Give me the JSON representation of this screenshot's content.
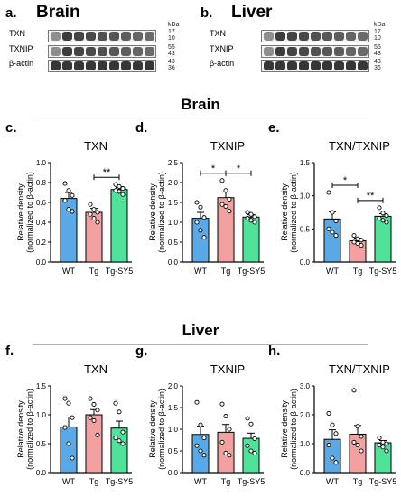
{
  "blots": {
    "brain": {
      "panel": "a.",
      "tissue": "Brain",
      "rows": [
        {
          "protein": "TXN",
          "kda": [
            "17",
            "10"
          ]
        },
        {
          "protein": "TXNIP",
          "kda": [
            "55",
            "43"
          ]
        },
        {
          "protein": "β-actin",
          "kda": [
            "43",
            "36"
          ]
        }
      ],
      "unit": "kDa"
    },
    "liver": {
      "panel": "b.",
      "tissue": "Liver",
      "rows": [
        {
          "protein": "TXN",
          "kda": [
            "17",
            "10"
          ]
        },
        {
          "protein": "TXNIP",
          "kda": [
            "55",
            "43"
          ]
        },
        {
          "protein": "β-actin",
          "kda": [
            "43",
            "36"
          ]
        }
      ],
      "unit": "kDa"
    }
  },
  "sections": {
    "brain": "Brain",
    "liver": "Liver"
  },
  "colors": {
    "WT": "#5aa9e6",
    "Tg": "#f2a0a0",
    "Tg-SY5": "#4fe39a"
  },
  "chart_data": [
    {
      "panel": "c.",
      "type": "bar",
      "title": "TXN",
      "categories": [
        "WT",
        "Tg",
        "Tg-SY5"
      ],
      "values": [
        0.64,
        0.5,
        0.73
      ],
      "errors": [
        0.06,
        0.04,
        0.02
      ],
      "points": [
        [
          0.79,
          0.72,
          0.67,
          0.62,
          0.53,
          0.51
        ],
        [
          0.58,
          0.53,
          0.5,
          0.48,
          0.44,
          0.4
        ],
        [
          0.78,
          0.76,
          0.74,
          0.72,
          0.71,
          0.68
        ]
      ],
      "ylim": [
        0,
        1.0
      ],
      "yticks": [
        "0.0",
        "0.2",
        "0.4",
        "0.6",
        "0.8",
        "1.0"
      ],
      "ylabel": [
        "Relative density",
        "(normalized to β-actin)"
      ],
      "sig": [
        {
          "from": 1,
          "to": 2,
          "label": "**"
        }
      ]
    },
    {
      "panel": "d.",
      "type": "bar",
      "title": "TXNIP",
      "categories": [
        "WT",
        "Tg",
        "Tg-SY5"
      ],
      "values": [
        1.1,
        1.62,
        1.13
      ],
      "errors": [
        0.15,
        0.14,
        0.06
      ],
      "points": [
        [
          1.5,
          1.38,
          1.12,
          1.0,
          0.8,
          0.62
        ],
        [
          2.05,
          1.8,
          1.58,
          1.45,
          1.4,
          1.28
        ],
        [
          1.25,
          1.2,
          1.14,
          1.1,
          1.05,
          1.0
        ]
      ],
      "ylim": [
        0,
        2.5
      ],
      "yticks": [
        "0.0",
        "0.5",
        "1.0",
        "1.5",
        "2.0",
        "2.5"
      ],
      "ylabel": [
        "Relative density",
        "(normalized to β-actin)"
      ],
      "sig": [
        {
          "from": 0,
          "to": 1,
          "label": "*"
        },
        {
          "from": 1,
          "to": 2,
          "label": "*"
        }
      ]
    },
    {
      "panel": "e.",
      "type": "bar",
      "title": "TXN/TXNIP",
      "categories": [
        "WT",
        "Tg",
        "Tg-SY5"
      ],
      "values": [
        0.65,
        0.32,
        0.69
      ],
      "errors": [
        0.11,
        0.04,
        0.04
      ],
      "points": [
        [
          1.05,
          0.75,
          0.62,
          0.5,
          0.45,
          0.4
        ],
        [
          0.4,
          0.35,
          0.33,
          0.3,
          0.28,
          0.25
        ],
        [
          0.82,
          0.74,
          0.7,
          0.66,
          0.63,
          0.6
        ]
      ],
      "ylim": [
        0,
        1.5
      ],
      "yticks": [
        "0.0",
        "0.5",
        "1.0",
        "1.5"
      ],
      "ylabel": [
        "Relative density",
        "(normalized to β-actin)"
      ],
      "sig": [
        {
          "from": 0,
          "to": 1,
          "label": "*"
        },
        {
          "from": 1,
          "to": 2,
          "label": "**"
        }
      ]
    },
    {
      "panel": "f.",
      "type": "bar",
      "title": "TXN",
      "categories": [
        "WT",
        "Tg",
        "Tg-SY5"
      ],
      "values": [
        0.79,
        1.0,
        0.77
      ],
      "errors": [
        0.17,
        0.09,
        0.12
      ],
      "points": [
        [
          1.28,
          1.2,
          0.95,
          0.78,
          0.5,
          0.25
        ],
        [
          1.28,
          1.18,
          1.08,
          0.95,
          0.9,
          0.65
        ],
        [
          1.2,
          1.05,
          0.7,
          0.6,
          0.55,
          0.5
        ]
      ],
      "ylim": [
        0,
        1.5
      ],
      "yticks": [
        "0.0",
        "0.5",
        "1.0",
        "1.5"
      ],
      "ylabel": [
        "Relative density",
        "(normalized to β-actin)"
      ],
      "sig": []
    },
    {
      "panel": "g.",
      "type": "bar",
      "title": "TXNIP",
      "categories": [
        "WT",
        "Tg",
        "Tg-SY5"
      ],
      "values": [
        0.88,
        0.93,
        0.79
      ],
      "errors": [
        0.19,
        0.18,
        0.12
      ],
      "points": [
        [
          1.62,
          1.1,
          0.8,
          0.62,
          0.5,
          0.4
        ],
        [
          1.58,
          1.3,
          1.0,
          0.7,
          0.45,
          0.4
        ],
        [
          1.25,
          1.12,
          0.78,
          0.62,
          0.5,
          0.45
        ]
      ],
      "ylim": [
        0,
        2.0
      ],
      "yticks": [
        "0.0",
        "0.5",
        "1.0",
        "1.5",
        "2.0"
      ],
      "ylabel": [
        "Relative density",
        "(normalized to β-actin)"
      ],
      "sig": []
    },
    {
      "panel": "h.",
      "type": "bar",
      "title": "TXN/TXNIP",
      "categories": [
        "WT",
        "Tg",
        "Tg-SY5"
      ],
      "values": [
        1.15,
        1.33,
        1.03
      ],
      "errors": [
        0.33,
        0.3,
        0.08
      ],
      "points": [
        [
          2.05,
          1.65,
          1.35,
          0.95,
          0.5,
          0.35
        ],
        [
          2.85,
          1.6,
          1.25,
          1.05,
          0.95,
          0.75
        ],
        [
          1.2,
          1.05,
          1.0,
          0.95,
          0.88,
          0.75
        ]
      ],
      "ylim": [
        0,
        3.0
      ],
      "yticks": [
        "0.0",
        "1.0",
        "2.0",
        "3.0"
      ],
      "ylabel": [
        "Relative density",
        "(normalized to β-actin)"
      ],
      "sig": []
    }
  ]
}
